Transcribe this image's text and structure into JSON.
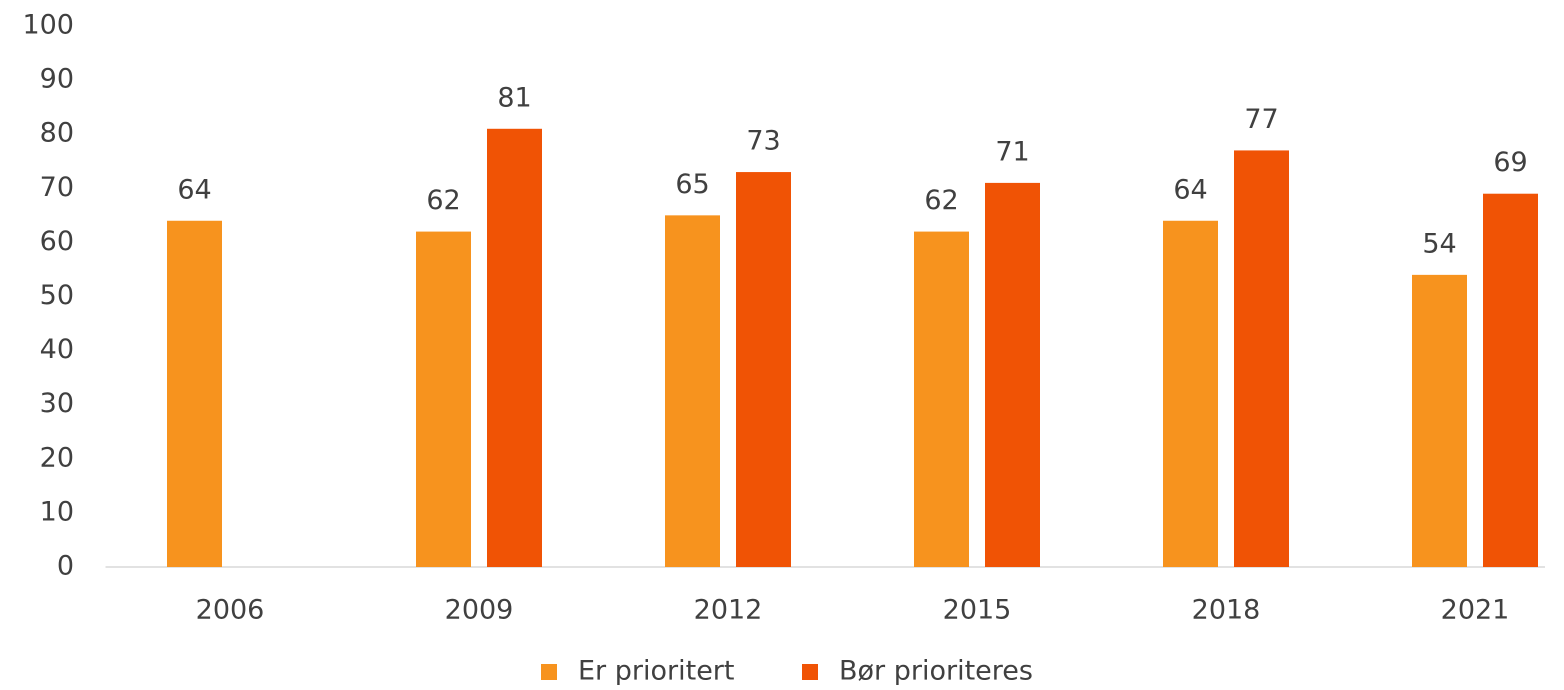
{
  "chart_data": {
    "type": "bar",
    "categories": [
      "2006",
      "2009",
      "2012",
      "2015",
      "2018",
      "2021"
    ],
    "series": [
      {
        "name": "Er prioritert",
        "color": "#f7931e",
        "values": [
          64,
          62,
          65,
          62,
          64,
          54
        ]
      },
      {
        "name": "Bør prioriteres",
        "color": "#f05305",
        "values": [
          null,
          81,
          73,
          71,
          77,
          69
        ]
      }
    ],
    "ylim": [
      0,
      100
    ],
    "yticks": [
      0,
      10,
      20,
      30,
      40,
      50,
      60,
      70,
      80,
      90,
      100
    ],
    "grid": false,
    "legend": "bottom"
  }
}
